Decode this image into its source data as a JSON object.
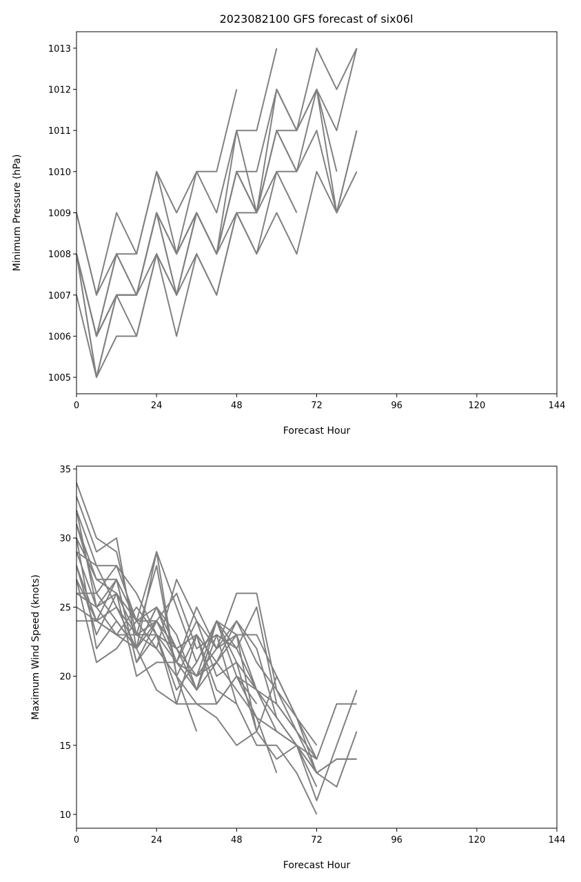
{
  "figure": {
    "title": "2023082100 GFS forecast of six06l"
  },
  "colors": {
    "series": "#808080",
    "axes": "#000000"
  },
  "chart_data": [
    {
      "type": "line",
      "title": "2023082100 GFS forecast of six06l",
      "xlabel": "Forecast Hour",
      "ylabel": "Minimum Pressure (hPa)",
      "xlim": [
        0,
        144
      ],
      "ylim": [
        1004.6,
        1013.4
      ],
      "xticks": [
        0,
        24,
        48,
        72,
        96,
        120,
        144
      ],
      "yticks": [
        1005,
        1006,
        1007,
        1008,
        1009,
        1010,
        1011,
        1012,
        1013
      ],
      "grid": false,
      "series": [
        {
          "x": [
            0,
            6,
            12,
            18,
            24,
            30,
            36,
            42,
            48
          ],
          "y": [
            1009,
            1007,
            1009,
            1008,
            1010,
            1009,
            1010,
            1010,
            1012
          ]
        },
        {
          "x": [
            0,
            6,
            12,
            18,
            24,
            30,
            36,
            42,
            48,
            54,
            60
          ],
          "y": [
            1009,
            1007,
            1008,
            1008,
            1010,
            1008,
            1010,
            1009,
            1011,
            1011,
            1013
          ]
        },
        {
          "x": [
            0,
            6,
            12,
            18,
            24,
            30,
            36,
            42,
            48,
            54,
            60,
            66,
            72,
            78,
            84
          ],
          "y": [
            1008,
            1006,
            1008,
            1007,
            1009,
            1008,
            1009,
            1008,
            1010,
            1009,
            1012,
            1011,
            1013,
            1012,
            1013
          ]
        },
        {
          "x": [
            0,
            6,
            12,
            18,
            24,
            30,
            36,
            42,
            48,
            54,
            60,
            66,
            72,
            78
          ],
          "y": [
            1008,
            1006,
            1008,
            1007,
            1009,
            1008,
            1009,
            1008,
            1010,
            1009,
            1011,
            1011,
            1012,
            1010
          ]
        },
        {
          "x": [
            0,
            6,
            12,
            18,
            24,
            30,
            36,
            42,
            48,
            54,
            60,
            66,
            72,
            78,
            84
          ],
          "y": [
            1008,
            1006,
            1007,
            1007,
            1009,
            1007,
            1009,
            1008,
            1010,
            1010,
            1012,
            1011,
            1012,
            1011,
            1013
          ]
        },
        {
          "x": [
            0,
            6,
            12,
            18,
            24,
            30,
            36,
            42,
            48,
            54,
            60,
            66
          ],
          "y": [
            1008,
            1006,
            1007,
            1007,
            1009,
            1007,
            1009,
            1008,
            1010,
            1009,
            1011,
            1010
          ]
        },
        {
          "x": [
            0,
            6,
            12,
            18,
            24,
            30,
            36,
            42,
            48,
            54,
            60,
            66,
            72,
            78,
            84
          ],
          "y": [
            1008,
            1006,
            1007,
            1007,
            1009,
            1008,
            1009,
            1008,
            1011,
            1009,
            1011,
            1010,
            1012,
            1009,
            1011
          ]
        },
        {
          "x": [
            0,
            6,
            12,
            18,
            24,
            30,
            36,
            42,
            48,
            54,
            60,
            66,
            72,
            78,
            84
          ],
          "y": [
            1007,
            1005,
            1007,
            1006,
            1008,
            1007,
            1009,
            1008,
            1009,
            1009,
            1010,
            1010,
            1011,
            1009,
            1011
          ]
        },
        {
          "x": [
            0,
            6,
            12,
            18,
            24,
            30,
            36,
            42,
            48,
            54,
            60,
            66
          ],
          "y": [
            1008,
            1005,
            1007,
            1007,
            1008,
            1007,
            1008,
            1007,
            1009,
            1008,
            1010,
            1009
          ]
        },
        {
          "x": [
            0,
            6,
            12,
            18,
            24,
            30,
            36,
            42,
            48,
            54,
            60,
            66,
            72,
            78,
            84
          ],
          "y": [
            1008,
            1005,
            1006,
            1006,
            1008,
            1006,
            1008,
            1007,
            1009,
            1008,
            1009,
            1008,
            1010,
            1009,
            1010
          ]
        }
      ]
    },
    {
      "type": "line",
      "title": "",
      "xlabel": "Forecast Hour",
      "ylabel": "Maximum Wind Speed (knots)",
      "xlim": [
        0,
        144
      ],
      "ylim": [
        9.0,
        35.2
      ],
      "xticks": [
        0,
        24,
        48,
        72,
        96,
        120,
        144
      ],
      "yticks": [
        10,
        15,
        20,
        25,
        30,
        35
      ],
      "grid": false,
      "series": [
        {
          "x": [
            0,
            6,
            12,
            18,
            24,
            30,
            36,
            42,
            48,
            54,
            60,
            66,
            72,
            78,
            84
          ],
          "y": [
            34,
            30,
            29,
            23,
            24,
            21,
            19,
            21,
            19,
            17,
            16,
            15,
            13,
            14,
            14
          ]
        },
        {
          "x": [
            0,
            6,
            12,
            18,
            24,
            30,
            36,
            42,
            48,
            54,
            60,
            66,
            72,
            78,
            84
          ],
          "y": [
            33,
            29,
            30,
            22,
            29,
            25,
            21,
            24,
            22,
            19,
            17,
            15,
            14,
            18,
            18
          ]
        },
        {
          "x": [
            0,
            6,
            12,
            18,
            24,
            30,
            36,
            42,
            48,
            54,
            60,
            66,
            72
          ],
          "y": [
            32,
            28,
            28,
            26,
            23,
            22,
            20,
            22,
            24,
            21,
            19,
            17,
            15
          ]
        },
        {
          "x": [
            0,
            6,
            12,
            18,
            24,
            30,
            36,
            42,
            48,
            54,
            60,
            66,
            72
          ],
          "y": [
            31,
            27,
            27,
            24,
            25,
            21,
            25,
            22,
            26,
            26,
            19,
            16,
            13
          ]
        },
        {
          "x": [
            0,
            6,
            12,
            18,
            24,
            30,
            36,
            42,
            48,
            54,
            60,
            66,
            72,
            78,
            84
          ],
          "y": [
            31,
            26,
            28,
            24,
            22,
            27,
            24,
            22,
            23,
            23,
            20,
            17,
            13,
            12,
            16
          ]
        },
        {
          "x": [
            0,
            6,
            12,
            18,
            24,
            30,
            36,
            42,
            48,
            54,
            60,
            66,
            72
          ],
          "y": [
            30,
            27,
            26,
            24,
            24,
            26,
            22,
            23,
            22,
            25,
            18,
            16,
            14
          ]
        },
        {
          "x": [
            0,
            6,
            12,
            18,
            24,
            30,
            36,
            42,
            48,
            54,
            60
          ],
          "y": [
            30,
            22,
            24,
            22,
            25,
            22,
            20,
            24,
            20,
            17,
            13
          ]
        },
        {
          "x": [
            0,
            6,
            12,
            18,
            24,
            30,
            36,
            42,
            48,
            54,
            60,
            66
          ],
          "y": [
            29,
            25,
            26,
            23,
            22,
            20,
            23,
            21,
            23,
            19,
            18,
            16
          ]
        },
        {
          "x": [
            0,
            6,
            12,
            18,
            24,
            30,
            36,
            42,
            48,
            54,
            60,
            66,
            72,
            78,
            84
          ],
          "y": [
            29,
            28,
            25,
            23,
            23,
            21,
            20,
            21,
            24,
            22,
            17,
            15,
            13,
            14,
            14
          ]
        },
        {
          "x": [
            0,
            6,
            12,
            18,
            24,
            30,
            36,
            42,
            48,
            54,
            60,
            66,
            72,
            78,
            84
          ],
          "y": [
            28,
            24,
            27,
            21,
            24,
            22,
            19,
            24,
            23,
            16,
            14,
            15,
            11,
            15,
            19
          ]
        },
        {
          "x": [
            0,
            6,
            12,
            18,
            24,
            30,
            36,
            42,
            48,
            54,
            60,
            66,
            72
          ],
          "y": [
            28,
            23,
            26,
            20,
            21,
            21,
            24,
            20,
            21,
            16,
            20,
            17,
            14
          ]
        },
        {
          "x": [
            0,
            6,
            12,
            18,
            24,
            30,
            36,
            42,
            48,
            54
          ],
          "y": [
            27,
            21,
            22,
            24,
            29,
            20,
            18,
            18,
            20,
            18
          ]
        },
        {
          "x": [
            0,
            6,
            12,
            18,
            24,
            30,
            36,
            42,
            48
          ],
          "y": [
            27,
            24,
            25,
            22,
            25,
            23,
            19,
            23,
            18
          ]
        },
        {
          "x": [
            0,
            6,
            12,
            18,
            24,
            30,
            36,
            42,
            48,
            54,
            60,
            66,
            72
          ],
          "y": [
            26,
            25,
            27,
            21,
            23,
            18,
            23,
            18,
            20,
            19,
            16,
            15,
            12
          ]
        },
        {
          "x": [
            0,
            6,
            12,
            18,
            24,
            30,
            36,
            42,
            48,
            54
          ],
          "y": [
            26,
            26,
            24,
            22,
            19,
            18,
            18,
            17,
            15,
            16
          ]
        },
        {
          "x": [
            0,
            6,
            12,
            18,
            24,
            30,
            36,
            42,
            48,
            54,
            60,
            66,
            72
          ],
          "y": [
            25,
            24,
            23,
            22,
            24,
            22,
            23,
            19,
            18,
            15,
            15,
            13,
            10
          ]
        },
        {
          "x": [
            0,
            6,
            12,
            18,
            24,
            30,
            36
          ],
          "y": [
            24,
            24,
            23,
            23,
            28,
            20,
            16
          ]
        },
        {
          "x": [
            0,
            6,
            12,
            18,
            24,
            30,
            36,
            42,
            48,
            54
          ],
          "y": [
            32,
            25,
            23,
            25,
            23,
            19,
            21,
            24,
            21,
            19
          ]
        }
      ]
    }
  ]
}
